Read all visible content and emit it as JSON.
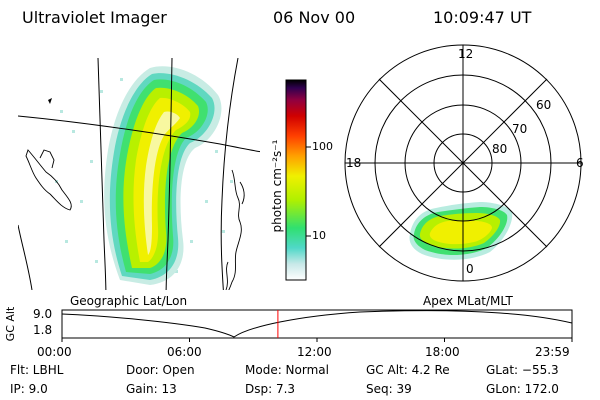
{
  "header": {
    "instrument": "Ultraviolet Imager",
    "date": "06 Nov 00",
    "time": "10:09:47 UT"
  },
  "colorbar": {
    "unit_label": "photon cm⁻²s⁻¹",
    "tick_100": "100",
    "tick_10": "10",
    "colors": [
      "#ffffff",
      "#c8e8e8",
      "#50d8c8",
      "#30e070",
      "#b0f000",
      "#f0f000",
      "#ffa000",
      "#ff4000",
      "#d00000",
      "#900040",
      "#300050",
      "#000000"
    ]
  },
  "panels": {
    "left_label": "Geographic Lat/Lon",
    "right_label": "Apex MLat/MLT"
  },
  "polar": {
    "mlt_12": "12",
    "mlt_18": "18",
    "mlt_6": "6",
    "mlt_0": "0",
    "lat_60": "60",
    "lat_70": "70",
    "lat_80": "80"
  },
  "timeline": {
    "ylabel": "GC Alt",
    "y_high": "9.0",
    "y_low": "1.8",
    "ticks": [
      "00:00",
      "06:00",
      "12:00",
      "18:00",
      "23:59"
    ],
    "current_marker_hour": 10.16,
    "marker_color": "#ff0000"
  },
  "info": {
    "row1": {
      "flt": "Flt: LBHL",
      "door": "Door: Open",
      "mode": "Mode: Normal",
      "gcalt": "GC Alt: 4.2 Re",
      "glat": "GLat: −55.3"
    },
    "row2": {
      "ip": "IP:  9.0",
      "gain": "Gain: 13",
      "dsp": "Dsp:    7.3",
      "seq": "Seq: 39",
      "glon": "GLon: 172.0"
    }
  }
}
